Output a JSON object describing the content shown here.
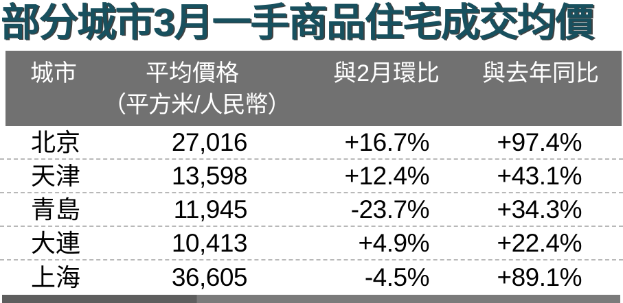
{
  "title": "部分城市3月一手商品住宅成交均價",
  "colors": {
    "title_teal": "#18505e",
    "header_band_gray": "#717171",
    "bottom_bar_dark": "#5e5e5e",
    "bottom_bar_light": "#7b7b7b",
    "row_separator": "#b8b8b8",
    "data_text": "#000000",
    "header_text": "#ffffff"
  },
  "table": {
    "headers": {
      "city": "城市",
      "price_line1": "平均價格",
      "price_line2": "（平方米/人民幣）",
      "mom": "與2月環比",
      "yoy": "與去年同比"
    },
    "rows": [
      {
        "city": "北京",
        "price": "27,016",
        "mom": "+16.7%",
        "yoy": "+97.4%"
      },
      {
        "city": "天津",
        "price": "13,598",
        "mom": "+12.4%",
        "yoy": "+43.1%"
      },
      {
        "city": "青島",
        "price": "11,945",
        "mom": "-23.7%",
        "yoy": "+34.3%"
      },
      {
        "city": "大連",
        "price": "10,413",
        "mom": "+4.9%",
        "yoy": "+22.4%"
      },
      {
        "city": "上海",
        "price": "36,605",
        "mom": "-4.5%",
        "yoy": "+89.1%"
      }
    ]
  },
  "chart_data": {
    "type": "table",
    "title": "部分城市3月一手商品住宅成交均價",
    "columns": [
      "城市",
      "平均價格（平方米/人民幣）",
      "與2月環比",
      "與去年同比"
    ],
    "rows": [
      [
        "北京",
        27016,
        "+16.7%",
        "+97.4%"
      ],
      [
        "天津",
        13598,
        "+12.4%",
        "+43.1%"
      ],
      [
        "青島",
        11945,
        "-23.7%",
        "+34.3%"
      ],
      [
        "大連",
        10413,
        "+4.9%",
        "+22.4%"
      ],
      [
        "上海",
        36605,
        "-4.5%",
        "+89.1%"
      ]
    ]
  }
}
